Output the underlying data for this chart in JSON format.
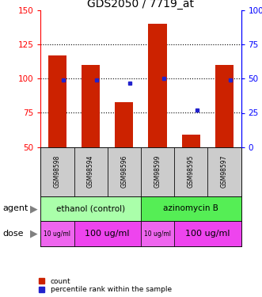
{
  "title": "GDS2050 / 7719_at",
  "samples": [
    "GSM98598",
    "GSM98594",
    "GSM98596",
    "GSM98599",
    "GSM98595",
    "GSM98597"
  ],
  "bar_values": [
    117,
    110,
    83,
    140,
    59,
    110
  ],
  "percentile_values": [
    49,
    49,
    47,
    50,
    27,
    49
  ],
  "ylim_left": [
    50,
    150
  ],
  "ylim_right": [
    0,
    100
  ],
  "yticks_left": [
    50,
    75,
    100,
    125,
    150
  ],
  "yticks_right": [
    0,
    25,
    50,
    75,
    100
  ],
  "bar_color": "#cc2200",
  "dot_color": "#2222cc",
  "agent_groups": [
    {
      "label": "ethanol (control)",
      "start": 0,
      "end": 3,
      "color": "#aaffaa"
    },
    {
      "label": "azinomycin B",
      "start": 3,
      "end": 6,
      "color": "#55ee55"
    }
  ],
  "dose_groups": [
    {
      "label": "10 ug/ml",
      "start": 0,
      "end": 1,
      "color": "#ee66ee",
      "fontsize": 5.5
    },
    {
      "label": "100 ug/ml",
      "start": 1,
      "end": 3,
      "color": "#ee44ee",
      "fontsize": 8
    },
    {
      "label": "10 ug/ml",
      "start": 3,
      "end": 4,
      "color": "#ee66ee",
      "fontsize": 5.5
    },
    {
      "label": "100 ug/ml",
      "start": 4,
      "end": 6,
      "color": "#ee44ee",
      "fontsize": 8
    }
  ],
  "sample_bg_color": "#cccccc",
  "bar_bottom": 50,
  "bar_width": 0.55,
  "grid_yticks": [
    75,
    100,
    125
  ]
}
